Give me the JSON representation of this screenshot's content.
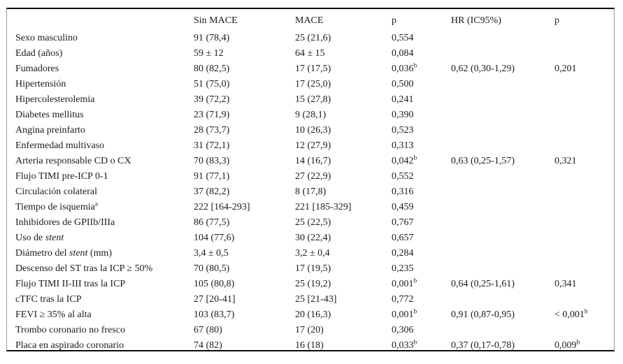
{
  "colors": {
    "text-color": "#1b1b1b",
    "rule-color": "#0a0a0a",
    "side-rule-color": "#9b9b9b",
    "bg-color": "#ffffff"
  },
  "table": {
    "headers": [
      "",
      "Sin MACE",
      "MACE",
      "p",
      "HR (IC95%)",
      "p"
    ],
    "rows": [
      [
        "Sexo masculino",
        "91 (78,4)",
        "25 (21,6)",
        "0,554",
        "",
        ""
      ],
      [
        "Edad (años)",
        "59 ± 12",
        "64 ± 15",
        "0,084",
        "",
        ""
      ],
      [
        "Fumadores",
        "80 (82,5)",
        "17 (17,5)",
        "0,036^b",
        "0,62 (0,30-1,29)",
        "0,201"
      ],
      [
        "Hipertensión",
        "51 (75,0)",
        "17 (25,0)",
        "0,500",
        "",
        ""
      ],
      [
        "Hipercolesterolemia",
        "39 (72,2)",
        "15 (27,8)",
        "0,241",
        "",
        ""
      ],
      [
        "Diabetes mellitus",
        "23 (71,9)",
        "9 (28,1)",
        "0,390",
        "",
        ""
      ],
      [
        "Angina preinfarto",
        "28 (73,7)",
        "10 (26,3)",
        "0,523",
        "",
        ""
      ],
      [
        "Enfermedad multivaso",
        "31 (72,1)",
        "12 (27,9)",
        "0,313",
        "",
        ""
      ],
      [
        "Arteria responsable CD o CX",
        "70 (83,3)",
        "14 (16,7)",
        "0,042^b",
        "0,63 (0,25-1,57)",
        "0,321"
      ],
      [
        "Flujo TIMI pre-ICP 0-1",
        "91 (77,1)",
        "27 (22,9)",
        "0,552",
        "",
        ""
      ],
      [
        "Circulación colateral",
        "37 (82,2)",
        "8 (17,8)",
        "0,316",
        "",
        ""
      ],
      [
        "Tiempo de isquemia^a",
        "222 [164-293]",
        "221 [185-329]",
        "0,459",
        "",
        ""
      ],
      [
        "Inhibidores de GPIIb/IIIa",
        "86 (77,5)",
        "25 (22,5)",
        "0,767",
        "",
        ""
      ],
      [
        "Uso de *stent*",
        "104 (77,6)",
        "30 (22,4)",
        "0,657",
        "",
        ""
      ],
      [
        "Diámetro del *stent* (mm)",
        "3,4 ± 0,5",
        "3,2 ± 0,4",
        "0,284",
        "",
        ""
      ],
      [
        "Descenso del ST tras la ICP ≥ 50%",
        "70 (80,5)",
        "17 (19,5)",
        "0,235",
        "",
        ""
      ],
      [
        "Flujo TIMI II-III tras la ICP",
        "105 (80,8)",
        "25 (19,2)",
        "0,001^b",
        "0,64 (0,25-1,61)",
        "0,341"
      ],
      [
        "cTFC tras la ICP",
        "27 [20-41]",
        "25 [21-43]",
        "0,772",
        "",
        ""
      ],
      [
        "FEVI ≥ 35% al alta",
        "103 (83,7)",
        "20 (16,3)",
        "0,001^b",
        "0,91 (0,87-0,95)",
        "< 0,001^b"
      ],
      [
        "Trombo coronario no fresco",
        "67 (80)",
        "17 (20)",
        "0,306",
        "",
        ""
      ],
      [
        "Placa en aspirado coronario",
        "74 (82)",
        "16 (18)",
        "0,033^b",
        "0,37 (0,17-0,78)",
        "0,009^b"
      ]
    ]
  }
}
